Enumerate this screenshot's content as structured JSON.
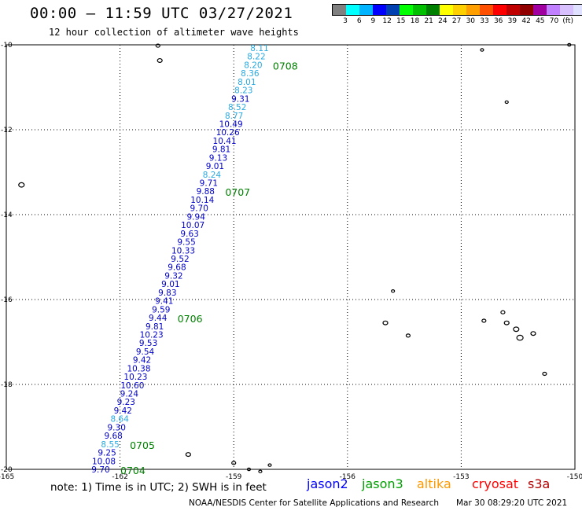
{
  "title": "00:00 – 11:59 UTC 03/27/2021",
  "subtitle": "12 hour collection of altimeter wave heights",
  "legend": {
    "colors": [
      "#808080",
      "#00ffff",
      "#00b4ff",
      "#0000ff",
      "#0040b0",
      "#00ff00",
      "#00c000",
      "#008000",
      "#ffff00",
      "#ffd000",
      "#ffa000",
      "#ff5000",
      "#ff0000",
      "#c00000",
      "#900000",
      "#a000a0",
      "#c080ff",
      "#d8c0ff",
      "#e0e0ff",
      "#000000"
    ],
    "ticks": [
      "3",
      "6",
      "9",
      "12",
      "15",
      "18",
      "21",
      "24",
      "27",
      "30",
      "33",
      "36",
      "39",
      "42",
      "45",
      "70",
      "(ft)"
    ]
  },
  "axes": {
    "x_ticks": [
      "-165",
      "-162",
      "-159",
      "-156",
      "-153",
      "-150"
    ],
    "y_ticks": [
      "-10",
      "-12",
      "-14",
      "-16",
      "-18",
      "-20"
    ]
  },
  "chart_data": {
    "type": "scatter",
    "x_range": [
      -165,
      -150
    ],
    "y_range": [
      -20,
      -10
    ],
    "grid": true,
    "track_points": [
      {
        "value": "8.11",
        "color": "#29a9e0"
      },
      {
        "value": "8.22",
        "color": "#29a9e0"
      },
      {
        "value": "8.20",
        "color": "#29a9e0"
      },
      {
        "value": "8.36",
        "color": "#29a9e0"
      },
      {
        "value": "8.01",
        "color": "#29a9e0"
      },
      {
        "value": "8.23",
        "color": "#29a9e0"
      },
      {
        "value": "9.31",
        "color": "#0000c8"
      },
      {
        "value": "8.52",
        "color": "#29a9e0"
      },
      {
        "value": "8.77",
        "color": "#29a9e0"
      },
      {
        "value": "10.49",
        "color": "#0000c8"
      },
      {
        "value": "10.26",
        "color": "#0000c8"
      },
      {
        "value": "10.41",
        "color": "#0000c8"
      },
      {
        "value": "9.81",
        "color": "#0000c8"
      },
      {
        "value": "9.13",
        "color": "#0000c8"
      },
      {
        "value": "9.01",
        "color": "#0000c8"
      },
      {
        "value": "8.24",
        "color": "#29a9e0"
      },
      {
        "value": "9.71",
        "color": "#0000c8"
      },
      {
        "value": "9.88",
        "color": "#0000c8"
      },
      {
        "value": "10.14",
        "color": "#0000c8"
      },
      {
        "value": "9.70",
        "color": "#0000c8"
      },
      {
        "value": "9.94",
        "color": "#0000c8"
      },
      {
        "value": "10.07",
        "color": "#0000c8"
      },
      {
        "value": "9.63",
        "color": "#0000c8"
      },
      {
        "value": "9.55",
        "color": "#0000c8"
      },
      {
        "value": "10.33",
        "color": "#0000c8"
      },
      {
        "value": "9.52",
        "color": "#0000c8"
      },
      {
        "value": "9.68",
        "color": "#0000c8"
      },
      {
        "value": "9.32",
        "color": "#0000c8"
      },
      {
        "value": "9.01",
        "color": "#0000c8"
      },
      {
        "value": "9.83",
        "color": "#0000c8"
      },
      {
        "value": "9.41",
        "color": "#0000c8"
      },
      {
        "value": "9.59",
        "color": "#0000c8"
      },
      {
        "value": "9.44",
        "color": "#0000c8"
      },
      {
        "value": "9.81",
        "color": "#0000c8"
      },
      {
        "value": "10.23",
        "color": "#0000c8"
      },
      {
        "value": "9.53",
        "color": "#0000c8"
      },
      {
        "value": "9.54",
        "color": "#0000c8"
      },
      {
        "value": "9.42",
        "color": "#0000c8"
      },
      {
        "value": "10.38",
        "color": "#0000c8"
      },
      {
        "value": "10.23",
        "color": "#0000c8"
      },
      {
        "value": "10.60",
        "color": "#0000c8"
      },
      {
        "value": "9.24",
        "color": "#0000c8"
      },
      {
        "value": "9.23",
        "color": "#0000c8"
      },
      {
        "value": "9.42",
        "color": "#0000c8"
      },
      {
        "value": "8.64",
        "color": "#29a9e0"
      },
      {
        "value": "9.30",
        "color": "#0000c8"
      },
      {
        "value": "9.68",
        "color": "#0000c8"
      },
      {
        "value": "8.55",
        "color": "#29a9e0"
      },
      {
        "value": "9.25",
        "color": "#0000c8"
      },
      {
        "value": "10.08",
        "color": "#0000c8"
      },
      {
        "value": "9.70",
        "color": "#0000c8"
      }
    ],
    "time_labels": [
      {
        "text": "0708",
        "after_index": 2
      },
      {
        "text": "0707",
        "after_index": 17
      },
      {
        "text": "0706",
        "after_index": 32
      },
      {
        "text": "0705",
        "after_index": 47
      },
      {
        "text": "0704",
        "after_index": 50
      }
    ]
  },
  "note": "note:  1) Time is in UTC;  2) SWH is in feet",
  "satellites": [
    {
      "name": "jason2",
      "color": "#0000ff"
    },
    {
      "name": "jason3",
      "color": "#00a000"
    },
    {
      "name": "altika",
      "color": "#ff9900"
    },
    {
      "name": "cryosat",
      "color": "#ff0000"
    },
    {
      "name": "s3a",
      "color": "#b00000"
    }
  ],
  "credit": "NOAA/NESDIS Center for Satellite Applications and Research",
  "timestamp": "Mar 30 08:29:20 UTC 2021"
}
